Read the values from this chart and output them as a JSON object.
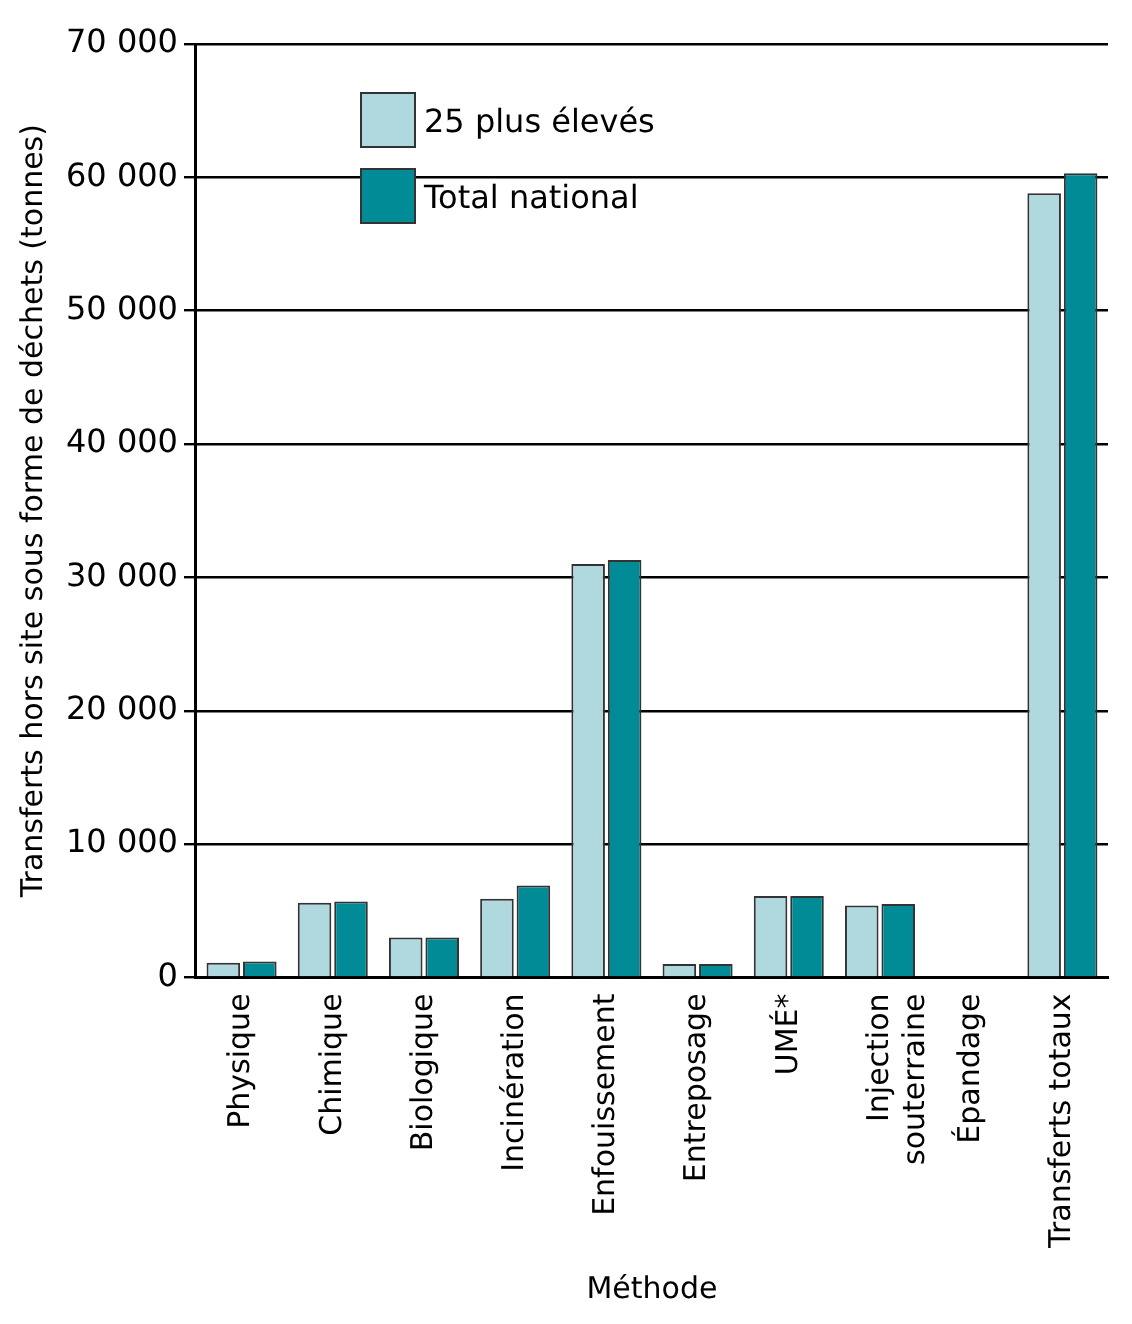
{
  "chart_data": {
    "type": "bar",
    "xlabel": "Méthode",
    "ylabel": "Transferts hors site sous forme de déchets (tonnes)",
    "categories": [
      "Physique",
      "Chimique",
      "Biologique",
      "Incinération",
      "Enfouissement",
      "Entreposage",
      "UMÉ*",
      "Injection\nsouterraine",
      "Épandage",
      "Transferts totaux"
    ],
    "series": [
      {
        "name": "25 plus élevés",
        "color": "#b0d8df",
        "values": [
          1100,
          5600,
          3000,
          5900,
          31000,
          1000,
          6100,
          5400,
          0,
          58800
        ]
      },
      {
        "name": "Total national",
        "color": "#008b96",
        "values": [
          1200,
          5700,
          3000,
          6900,
          31300,
          1000,
          6100,
          5500,
          0,
          60300
        ]
      }
    ],
    "ylim": [
      0,
      70000
    ],
    "yticks": [
      {
        "value": 0,
        "label": "0"
      },
      {
        "value": 10000,
        "label": "10 000"
      },
      {
        "value": 20000,
        "label": "20 000"
      },
      {
        "value": 30000,
        "label": "30 000"
      },
      {
        "value": 40000,
        "label": "40 000"
      },
      {
        "value": 50000,
        "label": "50 000"
      },
      {
        "value": 60000,
        "label": "60 000"
      },
      {
        "value": 70000,
        "label": "70 000"
      }
    ],
    "grid": "y",
    "legend": "top left"
  }
}
